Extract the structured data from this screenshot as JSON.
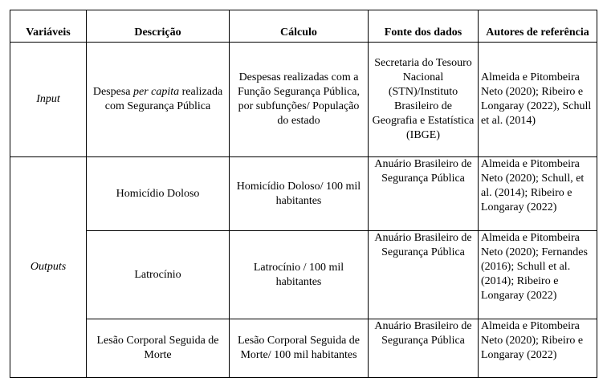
{
  "headers": [
    "Variáveis",
    "Descrição",
    "Cálculo",
    "Fonte dos dados",
    "Autores de referência"
  ],
  "groups": {
    "input": "Input",
    "outputs": "Outputs"
  },
  "rows": [
    {
      "desc_pre": "Despesa ",
      "desc_italic": "per capita",
      "desc_post": " realizada com Segurança Pública",
      "calc": "Despesas realizadas com a Função Segurança Pública, por subfunções/ População do estado",
      "source": "Secretaria do Tesouro Nacional (STN)/Instituto Brasileiro de Geografia e Estatística (IBGE)",
      "authors": "Almeida e Pitombeira Neto (2020); Ribeiro e Longaray (2022), Schull et al. (2014)"
    },
    {
      "desc": "Homicídio Doloso",
      "calc": "Homicídio Doloso/ 100 mil habitantes",
      "source": "Anuário Brasileiro de Segurança Pública",
      "authors": "Almeida e Pitombeira Neto (2020); Schull, et al. (2014); Ribeiro e Longaray (2022)"
    },
    {
      "desc": "Latrocínio",
      "calc": "Latrocínio / 100 mil habitantes",
      "source": "Anuário Brasileiro de Segurança Pública",
      "authors": "Almeida e Pitombeira Neto (2020); Fernandes (2016); Schull et al. (2014); Ribeiro e Longaray (2022)"
    },
    {
      "desc": "Lesão Corporal Seguida de Morte",
      "calc": "Lesão Corporal Seguida de Morte/ 100 mil habitantes",
      "source": "Anuário Brasileiro de Segurança Pública",
      "authors": "Almeida e Pitombeira Neto (2020); Ribeiro e Longaray (2022)"
    }
  ]
}
